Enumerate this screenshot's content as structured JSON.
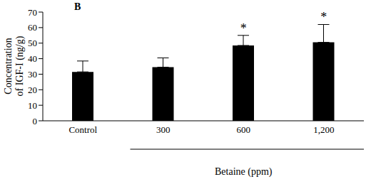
{
  "chart_data": {
    "type": "bar",
    "panel_label": "B",
    "categories": [
      "Control",
      "300",
      "600",
      "1,200"
    ],
    "values": [
      31.5,
      34.5,
      48.5,
      50.5
    ],
    "errors": [
      7,
      6,
      6.5,
      11.5
    ],
    "annotations": [
      null,
      null,
      "*",
      "*"
    ],
    "color": "#000000",
    "ylim": [
      0,
      70
    ],
    "yticks": [
      0,
      10,
      20,
      30,
      40,
      50,
      60,
      70
    ],
    "y_label": [
      "Concentration",
      "of IGF-I (ng/g)"
    ],
    "x_label": "Betaine (ppm)",
    "grid": false
  }
}
